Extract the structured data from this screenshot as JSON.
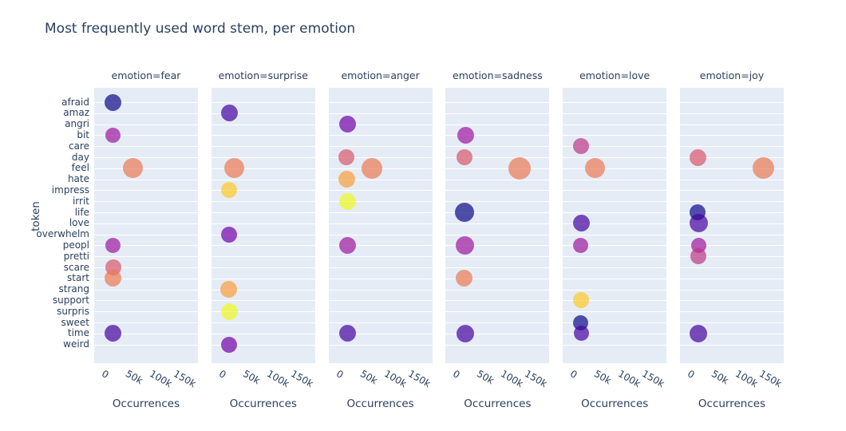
{
  "title": "Most frequently used word stem, per emotion",
  "chart_data": {
    "type": "scatter",
    "title": "Most frequently used word stem, per emotion",
    "xlabel": "Occurrences",
    "ylabel": "token",
    "x_tick_labels": [
      "0",
      "50k",
      "100k",
      "150k"
    ],
    "x_tick_values": [
      0,
      50000,
      100000,
      150000
    ],
    "xlim": [
      -33000,
      183000
    ],
    "grid": true,
    "legend_position": "none",
    "plot_bgcolor": "#e5ecf6",
    "font_color": "#2a3f5f",
    "marker_opacity": 0.7,
    "y_categories": [
      "afraid",
      "amaz",
      "angri",
      "bit",
      "care",
      "day",
      "feel",
      "hate",
      "impress",
      "irrit",
      "life",
      "love",
      "overwhelm",
      "peopl",
      "pretti",
      "scare",
      "start",
      "strang",
      "support",
      "surpris",
      "sweet",
      "time",
      "weird"
    ],
    "token_colors": {
      "afraid": "#0d0887",
      "amaz": "#46039f",
      "angri": "#7201a8",
      "bit": "#9c179e",
      "care": "#bd3786",
      "day": "#d8576b",
      "feel": "#ed7953",
      "hate": "#fa9e3b",
      "impress": "#fdc926",
      "irrit": "#f0f921",
      "life": "#0d0887",
      "love": "#46039f",
      "overwhelm": "#7201a8",
      "peopl": "#9c179e",
      "pretti": "#bd3786",
      "scare": "#d8576b",
      "start": "#ed7953",
      "strang": "#fa9e3b",
      "support": "#fdc926",
      "surpris": "#f0f921",
      "sweet": "#0d0887",
      "time": "#46039f",
      "weird": "#7201a8"
    },
    "facets": [
      {
        "label": "emotion=fear",
        "emotion": "fear",
        "points": [
          {
            "token": "afraid",
            "value": 6000,
            "size": 21
          },
          {
            "token": "bit",
            "value": 5000,
            "size": 19
          },
          {
            "token": "feel",
            "value": 48000,
            "size": 25
          },
          {
            "token": "peopl",
            "value": 5000,
            "size": 19
          },
          {
            "token": "scare",
            "value": 6000,
            "size": 20
          },
          {
            "token": "start",
            "value": 5000,
            "size": 21
          },
          {
            "token": "time",
            "value": 6000,
            "size": 21
          }
        ]
      },
      {
        "label": "emotion=surprise",
        "emotion": "surprise",
        "points": [
          {
            "token": "amaz",
            "value": 4000,
            "size": 21
          },
          {
            "token": "feel",
            "value": 15000,
            "size": 25
          },
          {
            "token": "impress",
            "value": 3000,
            "size": 20
          },
          {
            "token": "overwhelm",
            "value": 3000,
            "size": 20
          },
          {
            "token": "strang",
            "value": 3000,
            "size": 21
          },
          {
            "token": "surpris",
            "value": 4000,
            "size": 21
          },
          {
            "token": "weird",
            "value": 3000,
            "size": 20
          }
        ]
      },
      {
        "label": "emotion=anger",
        "emotion": "anger",
        "points": [
          {
            "token": "angri",
            "value": 6000,
            "size": 21
          },
          {
            "token": "day",
            "value": 4000,
            "size": 20
          },
          {
            "token": "feel",
            "value": 57000,
            "size": 26
          },
          {
            "token": "hate",
            "value": 5000,
            "size": 21
          },
          {
            "token": "irrit",
            "value": 6000,
            "size": 21
          },
          {
            "token": "peopl",
            "value": 6000,
            "size": 21
          },
          {
            "token": "time",
            "value": 7000,
            "size": 21
          }
        ]
      },
      {
        "label": "emotion=sadness",
        "emotion": "sadness",
        "points": [
          {
            "token": "bit",
            "value": 8000,
            "size": 21
          },
          {
            "token": "day",
            "value": 6000,
            "size": 20
          },
          {
            "token": "feel",
            "value": 121000,
            "size": 28
          },
          {
            "token": "life",
            "value": 6000,
            "size": 24
          },
          {
            "token": "peopl",
            "value": 7000,
            "size": 23
          },
          {
            "token": "start",
            "value": 6000,
            "size": 21
          },
          {
            "token": "time",
            "value": 8000,
            "size": 22
          }
        ]
      },
      {
        "label": "emotion=love",
        "emotion": "love",
        "points": [
          {
            "token": "care",
            "value": 4000,
            "size": 20
          },
          {
            "token": "feel",
            "value": 34000,
            "size": 25
          },
          {
            "token": "love",
            "value": 6000,
            "size": 21
          },
          {
            "token": "peopl",
            "value": 4000,
            "size": 19
          },
          {
            "token": "support",
            "value": 4000,
            "size": 20
          },
          {
            "token": "sweet",
            "value": 4000,
            "size": 19
          },
          {
            "token": "time",
            "value": 5000,
            "size": 19
          }
        ]
      },
      {
        "label": "emotion=joy",
        "emotion": "joy",
        "points": [
          {
            "token": "day",
            "value": 4000,
            "size": 21
          },
          {
            "token": "feel",
            "value": 141000,
            "size": 27
          },
          {
            "token": "life",
            "value": 4000,
            "size": 20
          },
          {
            "token": "love",
            "value": 6000,
            "size": 23
          },
          {
            "token": "peopl",
            "value": 5000,
            "size": 19
          },
          {
            "token": "pretti",
            "value": 5000,
            "size": 20
          },
          {
            "token": "time",
            "value": 5000,
            "size": 22
          }
        ]
      }
    ]
  }
}
